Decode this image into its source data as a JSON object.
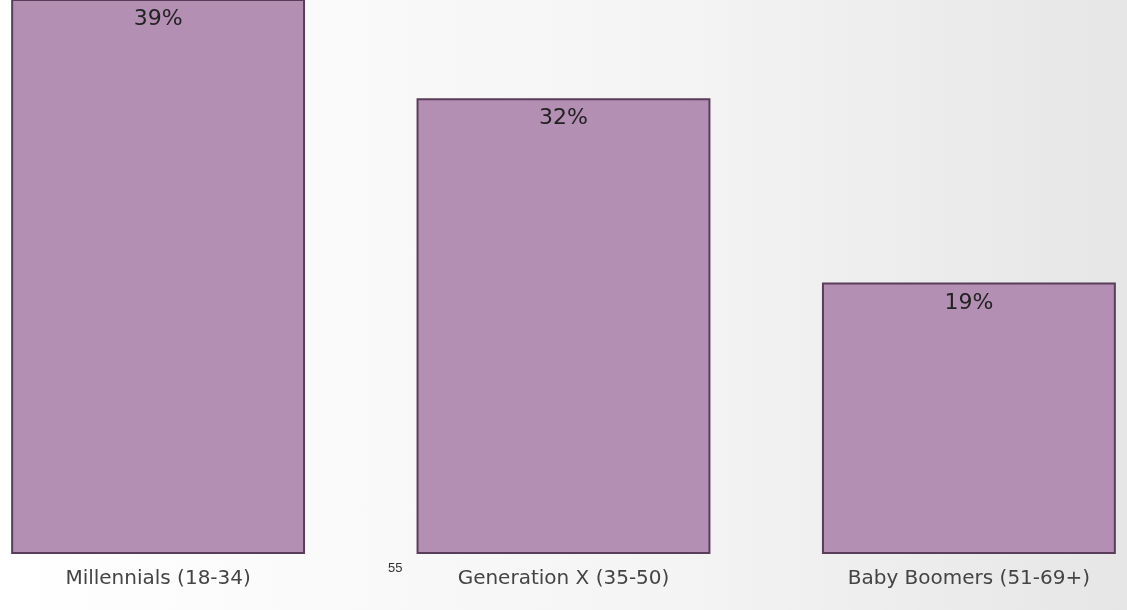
{
  "chart_data": {
    "type": "bar",
    "categories": [
      "Millennials (18-34)",
      "Generation X (35-50)",
      "Baby Boomers (51-69+)"
    ],
    "values": [
      39,
      32,
      19
    ],
    "value_labels": [
      "39%",
      "32%",
      "19%"
    ],
    "color": "#b48fb4",
    "annotations": [
      "55"
    ]
  }
}
